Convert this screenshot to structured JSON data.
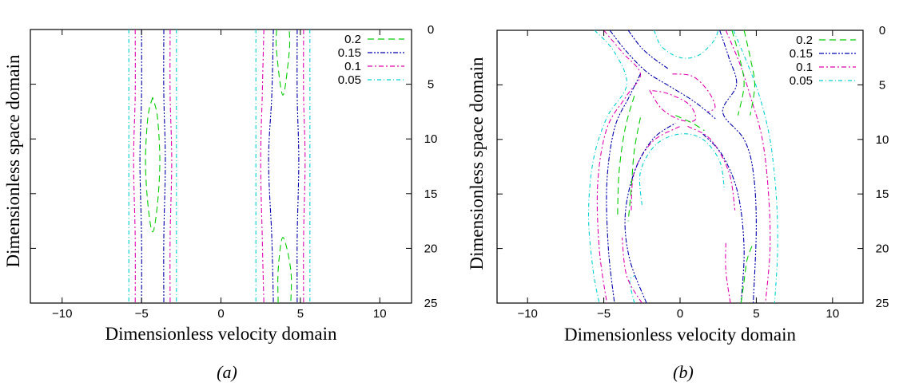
{
  "colors": {
    "level_0.2": "#00cc00",
    "level_0.15": "#0000aa",
    "level_0.1": "#e000b0",
    "level_0.05": "#00d0d0"
  },
  "chart_data": [
    {
      "type": "contour",
      "caption": "(a)",
      "title": "",
      "xlabel": "Dimensionless velocity domain",
      "ylabel": "Dimensionless space domain",
      "xlim": [
        -12,
        12
      ],
      "ylim": [
        0,
        25
      ],
      "y_inverted": true,
      "y_axis_side": "right",
      "x_ticks": [
        "-10",
        "-5",
        "0",
        "5",
        "10"
      ],
      "y_ticks": [
        "0",
        "5",
        "10",
        "15",
        "20",
        "25"
      ],
      "legend_position": "top-right",
      "legend": [
        {
          "label": "0.2",
          "color": "#00cc00",
          "dash": "8,5"
        },
        {
          "label": "0.15",
          "color": "#0000aa",
          "dash": "6,2,2,2,2,2"
        },
        {
          "label": "0.1",
          "color": "#e000b0",
          "dash": "6,3,2,3"
        },
        {
          "label": "0.05",
          "color": "#00d0d0",
          "dash": "5,3,1,3"
        }
      ],
      "series": [
        {
          "level": "0.05",
          "contours": [
            [
              [
                -5.8,
                0
              ],
              [
                -5.8,
                6
              ],
              [
                -5.8,
                12
              ],
              [
                -5.8,
                19
              ],
              [
                -5.8,
                25
              ]
            ],
            [
              [
                -2.8,
                0
              ],
              [
                -2.8,
                6
              ],
              [
                -2.8,
                12
              ],
              [
                -2.8,
                19
              ],
              [
                -2.8,
                25
              ]
            ],
            [
              [
                2.2,
                0
              ],
              [
                2.2,
                6
              ],
              [
                2.2,
                12
              ],
              [
                2.2,
                19
              ],
              [
                2.2,
                25
              ]
            ],
            [
              [
                5.6,
                0
              ],
              [
                5.6,
                6
              ],
              [
                5.6,
                12
              ],
              [
                5.6,
                19
              ],
              [
                5.6,
                25
              ]
            ]
          ]
        },
        {
          "level": "0.1",
          "contours": [
            [
              [
                -5.4,
                0
              ],
              [
                -5.4,
                6
              ],
              [
                -5.5,
                12
              ],
              [
                -5.4,
                19
              ],
              [
                -5.4,
                25
              ]
            ],
            [
              [
                -3.2,
                0
              ],
              [
                -3.2,
                6
              ],
              [
                -3.1,
                12
              ],
              [
                -3.2,
                19
              ],
              [
                -3.2,
                25
              ]
            ],
            [
              [
                2.7,
                0
              ],
              [
                2.6,
                6
              ],
              [
                2.5,
                12
              ],
              [
                2.6,
                19
              ],
              [
                2.7,
                25
              ]
            ],
            [
              [
                5.2,
                0
              ],
              [
                5.2,
                6
              ],
              [
                5.3,
                12
              ],
              [
                5.2,
                19
              ],
              [
                5.2,
                25
              ]
            ]
          ]
        },
        {
          "level": "0.15",
          "contours": [
            [
              [
                -5.0,
                0
              ],
              [
                -5.0,
                6
              ],
              [
                -5.1,
                12
              ],
              [
                -5.0,
                19
              ],
              [
                -5.0,
                25
              ]
            ],
            [
              [
                -3.6,
                0
              ],
              [
                -3.6,
                6
              ],
              [
                -3.5,
                12
              ],
              [
                -3.6,
                19
              ],
              [
                -3.6,
                25
              ]
            ],
            [
              [
                3.3,
                0
              ],
              [
                3.2,
                6
              ],
              [
                3.0,
                12
              ],
              [
                3.2,
                19
              ],
              [
                3.3,
                25
              ]
            ],
            [
              [
                4.8,
                0
              ],
              [
                4.8,
                6
              ],
              [
                4.9,
                12
              ],
              [
                4.8,
                19
              ],
              [
                4.8,
                25
              ]
            ]
          ]
        },
        {
          "level": "0.2",
          "contours": [
            [
              [
                -4.3,
                6.2
              ],
              [
                -4.6,
                8
              ],
              [
                -4.75,
                12
              ],
              [
                -4.6,
                16
              ],
              [
                -4.3,
                18.5
              ],
              [
                -4.0,
                16
              ],
              [
                -3.85,
                12
              ],
              [
                -4.0,
                8
              ],
              [
                -4.3,
                6.2
              ]
            ],
            [
              [
                3.5,
                0
              ],
              [
                3.5,
                2
              ],
              [
                3.9,
                6
              ],
              [
                4.3,
                2
              ],
              [
                4.3,
                0
              ]
            ],
            [
              [
                3.6,
                25
              ],
              [
                3.6,
                22
              ],
              [
                3.9,
                19
              ],
              [
                4.4,
                22
              ],
              [
                4.4,
                25
              ]
            ]
          ]
        }
      ]
    },
    {
      "type": "contour",
      "caption": "(b)",
      "title": "",
      "xlabel": "Dimensionless velocity domain",
      "ylabel": "Dimensionless space domain",
      "xlim": [
        -12,
        12
      ],
      "ylim": [
        0,
        25
      ],
      "y_inverted": true,
      "y_axis_side": "right",
      "x_ticks": [
        "-10",
        "-5",
        "0",
        "5",
        "10"
      ],
      "y_ticks": [
        "0",
        "5",
        "10",
        "15",
        "20",
        "25"
      ],
      "legend_position": "top-right",
      "legend": [
        {
          "label": "0.2",
          "color": "#00cc00",
          "dash": "8,5"
        },
        {
          "label": "0.15",
          "color": "#0000aa",
          "dash": "6,2,2,2,2,2"
        },
        {
          "label": "0.1",
          "color": "#e000b0",
          "dash": "6,3,2,3"
        },
        {
          "label": "0.05",
          "color": "#00d0d0",
          "dash": "5,3,1,3"
        }
      ],
      "series": [
        {
          "level": "0.05",
          "contours": [
            [
              [
                -5.6,
                0
              ],
              [
                -4.3,
                2
              ],
              [
                -3.5,
                5
              ],
              [
                -4.8,
                8
              ],
              [
                -5.7,
                12
              ],
              [
                -6.0,
                17
              ],
              [
                -5.7,
                22
              ],
              [
                -5.3,
                25
              ]
            ],
            [
              [
                3.5,
                0
              ],
              [
                4.4,
                3
              ],
              [
                5.2,
                6
              ],
              [
                5.9,
                10
              ],
              [
                6.3,
                15
              ],
              [
                6.4,
                20
              ],
              [
                6.2,
                25
              ]
            ],
            [
              [
                -1.7,
                0
              ],
              [
                -1.2,
                1.5
              ],
              [
                0,
                2.5
              ],
              [
                1.2,
                2.3
              ],
              [
                2.2,
                1
              ],
              [
                2.5,
                0
              ]
            ],
            [
              [
                -2.5,
                16
              ],
              [
                -2.6,
                13
              ],
              [
                -1.6,
                10.5
              ],
              [
                0,
                9.5
              ],
              [
                1.5,
                10
              ],
              [
                2.6,
                12
              ],
              [
                2.9,
                14.5
              ]
            ],
            [
              [
                -3.0,
                25
              ],
              [
                -3.3,
                23
              ],
              [
                -3.0,
                22.5
              ]
            ]
          ]
        },
        {
          "level": "0.1",
          "contours": [
            [
              [
                -5.0,
                0
              ],
              [
                -3.8,
                2
              ],
              [
                -2.6,
                4
              ],
              [
                -3.5,
                6
              ],
              [
                -4.8,
                9
              ],
              [
                -5.4,
                14
              ],
              [
                -5.3,
                20
              ],
              [
                -4.8,
                25
              ]
            ],
            [
              [
                3.0,
                0
              ],
              [
                3.9,
                3
              ],
              [
                4.6,
                6
              ],
              [
                5.4,
                10
              ],
              [
                5.8,
                15
              ],
              [
                5.9,
                20
              ],
              [
                5.6,
                25
              ]
            ],
            [
              [
                -2.0,
                5.5
              ],
              [
                -1.2,
                7.2
              ],
              [
                0,
                8.2
              ],
              [
                1.0,
                8.2
              ],
              [
                0.6,
                6.8
              ],
              [
                -0.8,
                5.8
              ],
              [
                -2.0,
                5.5
              ]
            ],
            [
              [
                -0.5,
                4
              ],
              [
                0.8,
                4.2
              ],
              [
                1.8,
                5.5
              ],
              [
                2.3,
                7.0
              ],
              [
                1.8,
                7.5
              ]
            ],
            [
              [
                -3.2,
                16.5
              ],
              [
                -3.0,
                13
              ],
              [
                -1.8,
                10.2
              ],
              [
                0,
                8.8
              ]
            ],
            [
              [
                0.5,
                8.8
              ],
              [
                2.0,
                10.0
              ],
              [
                3.2,
                13.0
              ],
              [
                3.6,
                16.5
              ]
            ],
            [
              [
                -2.5,
                25
              ],
              [
                -3.5,
                22.5
              ],
              [
                -3.8,
                19
              ]
            ],
            [
              [
                3.3,
                25
              ],
              [
                3.0,
                22
              ],
              [
                3.0,
                19.5
              ]
            ]
          ]
        },
        {
          "level": "0.15",
          "contours": [
            [
              [
                -4.6,
                0
              ],
              [
                -3.6,
                1.8
              ],
              [
                -2.2,
                3.8
              ],
              [
                -0.6,
                5.2
              ],
              [
                1.0,
                6.6
              ],
              [
                2.4,
                8.2
              ]
            ],
            [
              [
                -3.4,
                0
              ],
              [
                -2.6,
                1.5
              ],
              [
                -1.8,
                2.5
              ],
              [
                -0.8,
                3.5
              ]
            ],
            [
              [
                2.6,
                0
              ],
              [
                3.2,
                2.5
              ],
              [
                3.7,
                5
              ],
              [
                2.8,
                7.5
              ],
              [
                4.2,
                10
              ],
              [
                4.8,
                13
              ],
              [
                5.0,
                18
              ],
              [
                4.8,
                25
              ]
            ],
            [
              [
                -2.6,
                4
              ],
              [
                -3.3,
                6
              ],
              [
                -4.3,
                9
              ],
              [
                -4.8,
                14
              ],
              [
                -4.7,
                20
              ],
              [
                -4.3,
                25
              ]
            ],
            [
              [
                -2.2,
                25
              ],
              [
                -3.3,
                21
              ],
              [
                -3.6,
                17
              ],
              [
                -3.0,
                13
              ],
              [
                -1.8,
                10
              ],
              [
                -0.3,
                8.5
              ]
            ],
            [
              [
                1.5,
                9.5
              ],
              [
                2.8,
                11.5
              ],
              [
                3.8,
                15
              ],
              [
                4.2,
                20
              ],
              [
                4.0,
                25
              ]
            ]
          ]
        },
        {
          "level": "0.2",
          "contours": [
            [
              [
                3.4,
                0
              ],
              [
                3.9,
                2.5
              ],
              [
                4.2,
                5
              ],
              [
                3.8,
                7.8
              ]
            ],
            [
              [
                4.2,
                0
              ],
              [
                4.6,
                2.5
              ],
              [
                4.9,
                5
              ],
              [
                4.6,
                7.8
              ]
            ],
            [
              [
                -3.0,
                6
              ],
              [
                -3.6,
                9
              ],
              [
                -4.0,
                13
              ],
              [
                -4.1,
                17
              ]
            ],
            [
              [
                -2.6,
                8
              ],
              [
                -3.0,
                11
              ],
              [
                -3.2,
                14.5
              ],
              [
                -3.4,
                17.5
              ]
            ],
            [
              [
                -0.3,
                7.8
              ],
              [
                0.8,
                8.5
              ],
              [
                1.6,
                9.2
              ]
            ],
            [
              [
                4.0,
                25
              ],
              [
                4.2,
                23
              ],
              [
                4.4,
                21
              ],
              [
                4.8,
                19.5
              ]
            ]
          ]
        }
      ]
    }
  ]
}
